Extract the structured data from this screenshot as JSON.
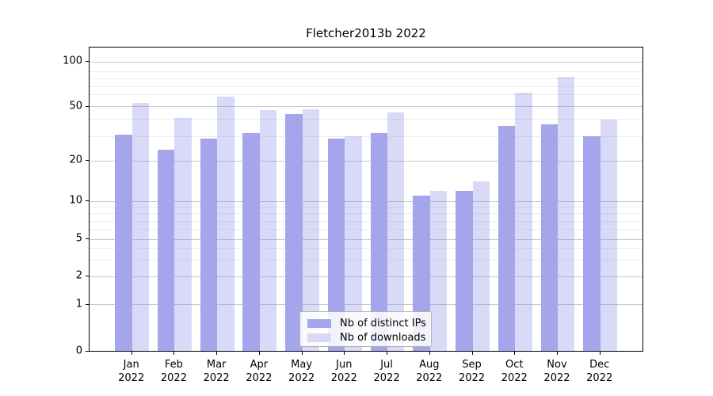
{
  "chart_data": {
    "type": "bar",
    "title": "Fletcher2013b 2022",
    "categories": [
      "Jan 2022",
      "Feb 2022",
      "Mar 2022",
      "Apr 2022",
      "May 2022",
      "Jun 2022",
      "Jul 2022",
      "Aug 2022",
      "Sep 2022",
      "Oct 2022",
      "Nov 2022",
      "Dec 2022"
    ],
    "months": [
      "Jan",
      "Feb",
      "Mar",
      "Apr",
      "May",
      "Jun",
      "Jul",
      "Aug",
      "Sep",
      "Oct",
      "Nov",
      "Dec"
    ],
    "year_label": "2022",
    "series": [
      {
        "name": "Nb of distinct IPs",
        "color": "#a5a5ec",
        "values": [
          31,
          24,
          29,
          32,
          44,
          29,
          32,
          11,
          12,
          36,
          37,
          30
        ]
      },
      {
        "name": "Nb of downloads",
        "color": "#d9d9f6",
        "values": [
          53,
          41,
          58,
          47,
          48,
          30,
          45,
          12,
          14,
          62,
          82,
          40
        ]
      }
    ],
    "y_scale": "symlog",
    "y_ticks": [
      0,
      1,
      2,
      5,
      10,
      20,
      50,
      100
    ],
    "ylim": [
      0,
      126
    ],
    "grid": true,
    "legend_position": "lower center",
    "colors": {
      "distinct_ips": "#a5a5ec",
      "downloads": "#d9d9f6",
      "grid_major": "#c9c9c9",
      "grid_minor": "#ececec"
    }
  }
}
